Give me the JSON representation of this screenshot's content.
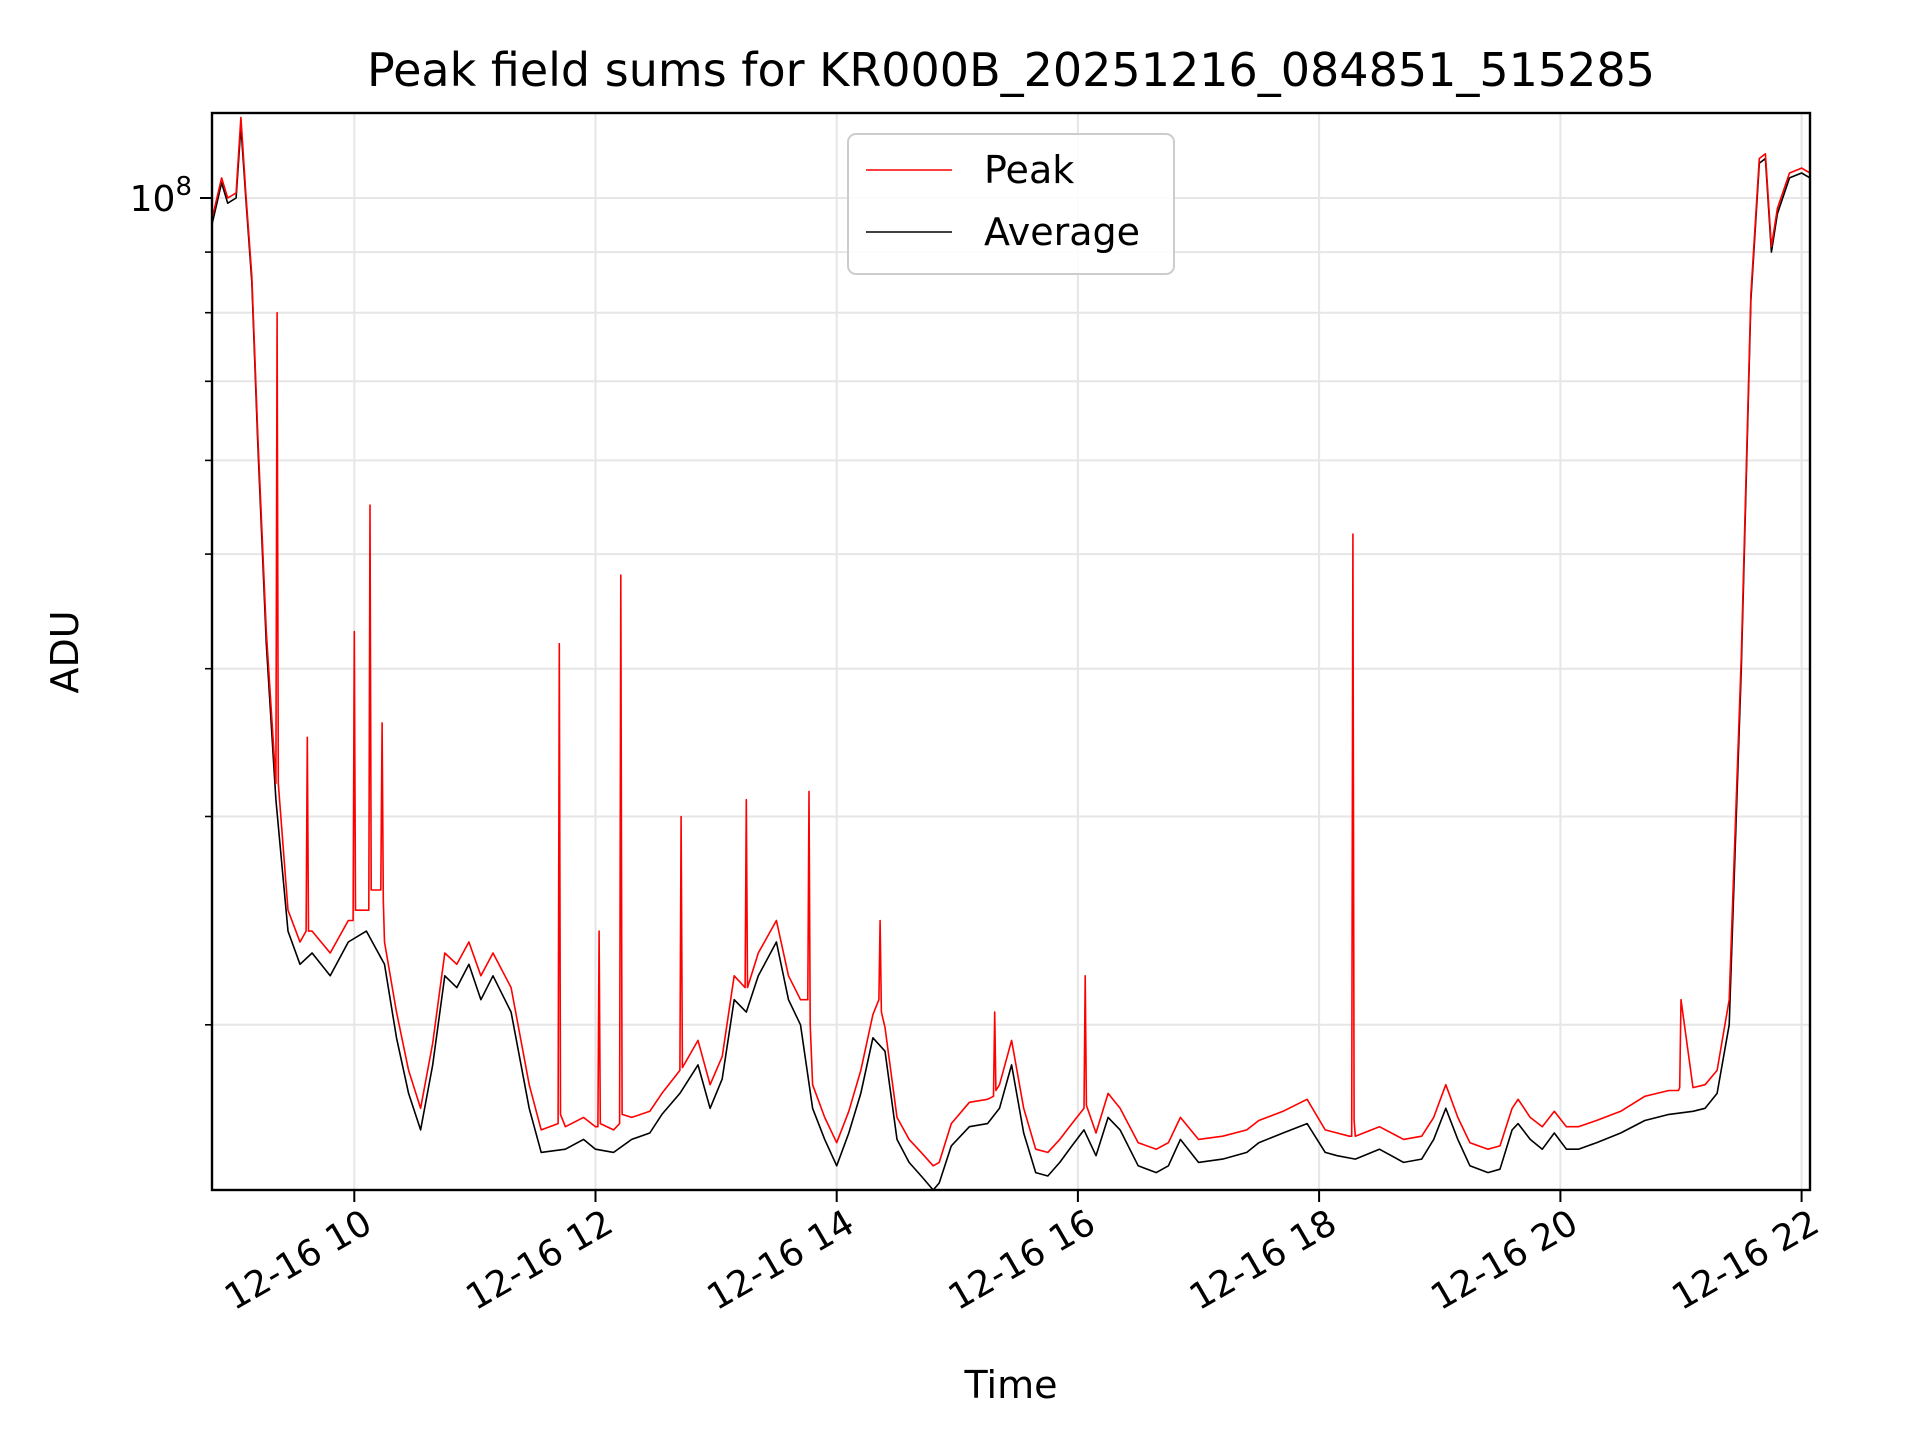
{
  "chart_data": {
    "type": "line",
    "title": "Peak field sums for KR000B_20251216_084851_515285",
    "xlabel": "Time",
    "ylabel": "ADU",
    "x_unit": "hour of day (2025-12-16)",
    "xlim": [
      8.82,
      22.07
    ],
    "ylim": [
      14500000,
      118000000
    ],
    "y_scale": "log",
    "grid": true,
    "legend_position": "top-center",
    "x_ticks": [
      {
        "value": 10,
        "label": "12-16 10"
      },
      {
        "value": 12,
        "label": "12-16 12"
      },
      {
        "value": 14,
        "label": "12-16 14"
      },
      {
        "value": 16,
        "label": "12-16 16"
      },
      {
        "value": 18,
        "label": "12-16 18"
      },
      {
        "value": 20,
        "label": "12-16 20"
      },
      {
        "value": 22,
        "label": "12-16 22"
      }
    ],
    "y_ticks": [
      {
        "value": 100000000,
        "base": "10",
        "exponent": "8"
      }
    ],
    "y_minor_ticks": [
      20000000,
      30000000,
      40000000,
      50000000,
      60000000,
      70000000,
      80000000,
      90000000
    ],
    "series": [
      {
        "name": "Average",
        "color": "#000000",
        "x": [
          8.82,
          8.9,
          8.95,
          9.02,
          9.06,
          9.1,
          9.15,
          9.2,
          9.27,
          9.35,
          9.45,
          9.55,
          9.65,
          9.8,
          9.95,
          10.1,
          10.25,
          10.35,
          10.45,
          10.55,
          10.65,
          10.75,
          10.85,
          10.95,
          11.05,
          11.15,
          11.3,
          11.45,
          11.55,
          11.75,
          11.9,
          12.0,
          12.15,
          12.3,
          12.45,
          12.55,
          12.7,
          12.85,
          12.95,
          13.05,
          13.15,
          13.25,
          13.35,
          13.5,
          13.6,
          13.7,
          13.8,
          13.9,
          14.0,
          14.1,
          14.2,
          14.3,
          14.4,
          14.5,
          14.6,
          14.7,
          14.8,
          14.85,
          14.95,
          15.1,
          15.25,
          15.35,
          15.45,
          15.55,
          15.65,
          15.75,
          15.85,
          15.95,
          16.05,
          16.15,
          16.25,
          16.35,
          16.5,
          16.65,
          16.75,
          16.85,
          17.0,
          17.2,
          17.4,
          17.5,
          17.7,
          17.9,
          18.05,
          18.15,
          18.3,
          18.5,
          18.7,
          18.85,
          18.95,
          19.05,
          19.15,
          19.25,
          19.4,
          19.5,
          19.6,
          19.65,
          19.75,
          19.85,
          19.95,
          20.05,
          20.15,
          20.3,
          20.5,
          20.7,
          20.9,
          21.1,
          21.2,
          21.3,
          21.4,
          21.5,
          21.58,
          21.65,
          21.7,
          21.75,
          21.8,
          21.9,
          22.0,
          22.07
        ],
        "y": [
          95000000,
          103000000,
          99000000,
          100000000,
          115000000,
          100000000,
          85000000,
          62000000,
          42000000,
          31000000,
          24000000,
          22500000,
          23000000,
          22000000,
          23500000,
          24000000,
          22500000,
          19500000,
          17500000,
          16300000,
          18500000,
          22000000,
          21500000,
          22500000,
          21000000,
          22000000,
          20500000,
          17000000,
          15600000,
          15700000,
          16000000,
          15700000,
          15600000,
          16000000,
          16200000,
          16800000,
          17500000,
          18500000,
          17000000,
          18000000,
          21000000,
          20500000,
          22000000,
          23500000,
          21000000,
          20000000,
          17000000,
          16000000,
          15200000,
          16200000,
          17500000,
          19500000,
          19000000,
          16000000,
          15300000,
          14900000,
          14500000,
          14700000,
          15800000,
          16400000,
          16500000,
          17000000,
          18500000,
          16200000,
          15000000,
          14900000,
          15300000,
          15800000,
          16300000,
          15500000,
          16700000,
          16300000,
          15200000,
          15000000,
          15200000,
          16000000,
          15300000,
          15400000,
          15600000,
          15900000,
          16200000,
          16500000,
          15600000,
          15500000,
          15400000,
          15700000,
          15300000,
          15400000,
          16000000,
          17000000,
          16000000,
          15200000,
          15000000,
          15100000,
          16300000,
          16500000,
          16000000,
          15700000,
          16200000,
          15700000,
          15700000,
          15900000,
          16200000,
          16600000,
          16800000,
          16900000,
          17000000,
          17500000,
          20000000,
          40000000,
          82000000,
          107000000,
          108000000,
          90000000,
          97000000,
          104000000,
          105000000,
          104000000
        ],
        "z_order": "Peak series drawn above Average"
      },
      {
        "name": "Peak",
        "color": "#ff0000",
        "x": [
          8.82,
          8.9,
          8.95,
          9.02,
          9.06,
          9.1,
          9.15,
          9.2,
          9.27,
          9.35,
          9.36,
          9.37,
          9.45,
          9.55,
          9.6,
          9.61,
          9.62,
          9.65,
          9.8,
          9.95,
          9.99,
          10.0,
          10.01,
          10.1,
          10.12,
          10.13,
          10.14,
          10.22,
          10.23,
          10.24,
          10.25,
          10.35,
          10.45,
          10.55,
          10.65,
          10.75,
          10.85,
          10.95,
          11.05,
          11.15,
          11.3,
          11.45,
          11.55,
          11.69,
          11.7,
          11.71,
          11.75,
          11.9,
          12.0,
          12.02,
          12.03,
          12.04,
          12.15,
          12.2,
          12.21,
          12.22,
          12.3,
          12.45,
          12.55,
          12.7,
          12.71,
          12.72,
          12.85,
          12.95,
          13.05,
          13.15,
          13.24,
          13.25,
          13.26,
          13.35,
          13.5,
          13.6,
          13.7,
          13.76,
          13.77,
          13.78,
          13.8,
          13.9,
          14.0,
          14.1,
          14.2,
          14.3,
          14.35,
          14.36,
          14.37,
          14.4,
          14.5,
          14.6,
          14.7,
          14.8,
          14.85,
          14.95,
          15.1,
          15.25,
          15.3,
          15.31,
          15.32,
          15.35,
          15.45,
          15.55,
          15.65,
          15.75,
          15.85,
          15.95,
          16.05,
          16.06,
          16.07,
          16.15,
          16.25,
          16.35,
          16.5,
          16.65,
          16.75,
          16.85,
          17.0,
          17.2,
          17.4,
          17.5,
          17.7,
          17.9,
          18.05,
          18.15,
          18.25,
          18.27,
          18.28,
          18.29,
          18.3,
          18.5,
          18.7,
          18.85,
          18.95,
          19.05,
          19.15,
          19.25,
          19.4,
          19.5,
          19.6,
          19.65,
          19.75,
          19.85,
          19.95,
          20.05,
          20.15,
          20.3,
          20.5,
          20.7,
          20.9,
          20.98,
          20.99,
          21.0,
          21.1,
          21.2,
          21.3,
          21.4,
          21.5,
          21.58,
          21.65,
          21.7,
          21.75,
          21.8,
          21.9,
          22.0,
          22.07
        ],
        "y": [
          96000000,
          104000000,
          100000000,
          101000000,
          117000000,
          101000000,
          86000000,
          63000000,
          43000000,
          32000000,
          80000000,
          32000000,
          25000000,
          23500000,
          24000000,
          35000000,
          24000000,
          24000000,
          23000000,
          24500000,
          24500000,
          43000000,
          25000000,
          25000000,
          25000000,
          55000000,
          26000000,
          26000000,
          36000000,
          25500000,
          23500000,
          20500000,
          18300000,
          17000000,
          19300000,
          23000000,
          22500000,
          23500000,
          22000000,
          23000000,
          21500000,
          17800000,
          16300000,
          16500000,
          42000000,
          16800000,
          16400000,
          16700000,
          16400000,
          16400000,
          24000000,
          16500000,
          16300000,
          16500000,
          48000000,
          16800000,
          16700000,
          16900000,
          17500000,
          18300000,
          30000000,
          18400000,
          19400000,
          17800000,
          18800000,
          22000000,
          21500000,
          31000000,
          21500000,
          23000000,
          24500000,
          22000000,
          21000000,
          21000000,
          31500000,
          20000000,
          17800000,
          16700000,
          15900000,
          16900000,
          18300000,
          20400000,
          21000000,
          24500000,
          20500000,
          19900000,
          16700000,
          16000000,
          15600000,
          15200000,
          15300000,
          16500000,
          17200000,
          17300000,
          17400000,
          20500000,
          17600000,
          17800000,
          19400000,
          17000000,
          15700000,
          15600000,
          16000000,
          16500000,
          17000000,
          22000000,
          17100000,
          16200000,
          17500000,
          17000000,
          15900000,
          15700000,
          15900000,
          16700000,
          16000000,
          16100000,
          16300000,
          16600000,
          16900000,
          17300000,
          16300000,
          16200000,
          16100000,
          16100000,
          52000000,
          16600000,
          16100000,
          16400000,
          16000000,
          16100000,
          16700000,
          17800000,
          16700000,
          15900000,
          15700000,
          15800000,
          17000000,
          17300000,
          16700000,
          16400000,
          16900000,
          16400000,
          16400000,
          16600000,
          16900000,
          17400000,
          17600000,
          17600000,
          17700000,
          21000000,
          17700000,
          17800000,
          18300000,
          21000000,
          41000000,
          83000000,
          108000000,
          109000000,
          91000000,
          98000000,
          105000000,
          106000000,
          105000000
        ]
      }
    ]
  },
  "legend": {
    "entries": [
      {
        "label": "Peak",
        "color": "#ff0000"
      },
      {
        "label": "Average",
        "color": "#000000"
      }
    ]
  }
}
